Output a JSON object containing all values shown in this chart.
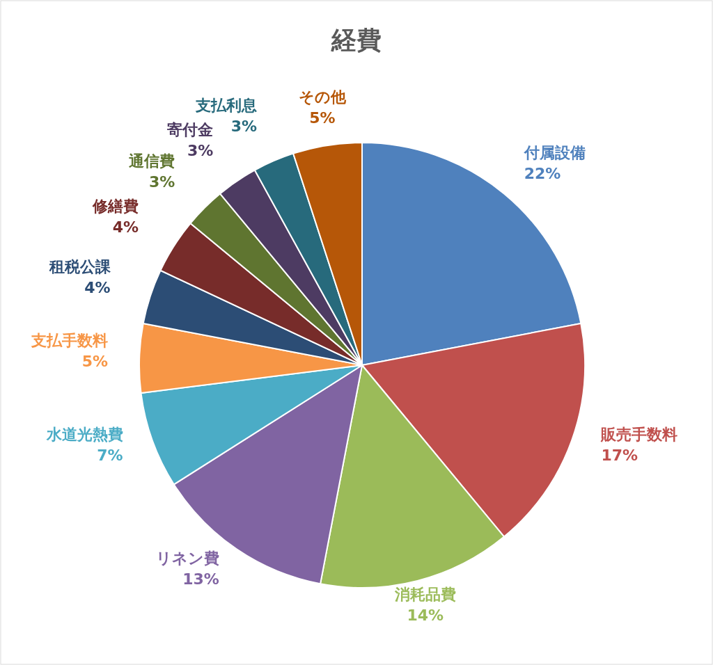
{
  "chart_data": {
    "type": "pie",
    "title": "経費",
    "categories": [
      "付属設備",
      "販売手数料",
      "消耗品費",
      "リネン費",
      "水道光熱費",
      "支払手数料",
      "租税公課",
      "修繕費",
      "通信費",
      "寄付金",
      "支払利息",
      "その他"
    ],
    "values": [
      22,
      17,
      14,
      13,
      7,
      5,
      4,
      4,
      3,
      3,
      3,
      5
    ],
    "value_labels": [
      "22%",
      "17%",
      "14%",
      "13%",
      "7%",
      "5%",
      "4%",
      "4%",
      "3%",
      "3%",
      "3%",
      "5%"
    ],
    "colors": [
      "#4f81bd",
      "#c0504d",
      "#9bbb59",
      "#8064a2",
      "#4bacc6",
      "#f79646",
      "#2c4d75",
      "#772c2a",
      "#5f7530",
      "#4d3b62",
      "#276a7c",
      "#b65708"
    ],
    "legend": false
  }
}
